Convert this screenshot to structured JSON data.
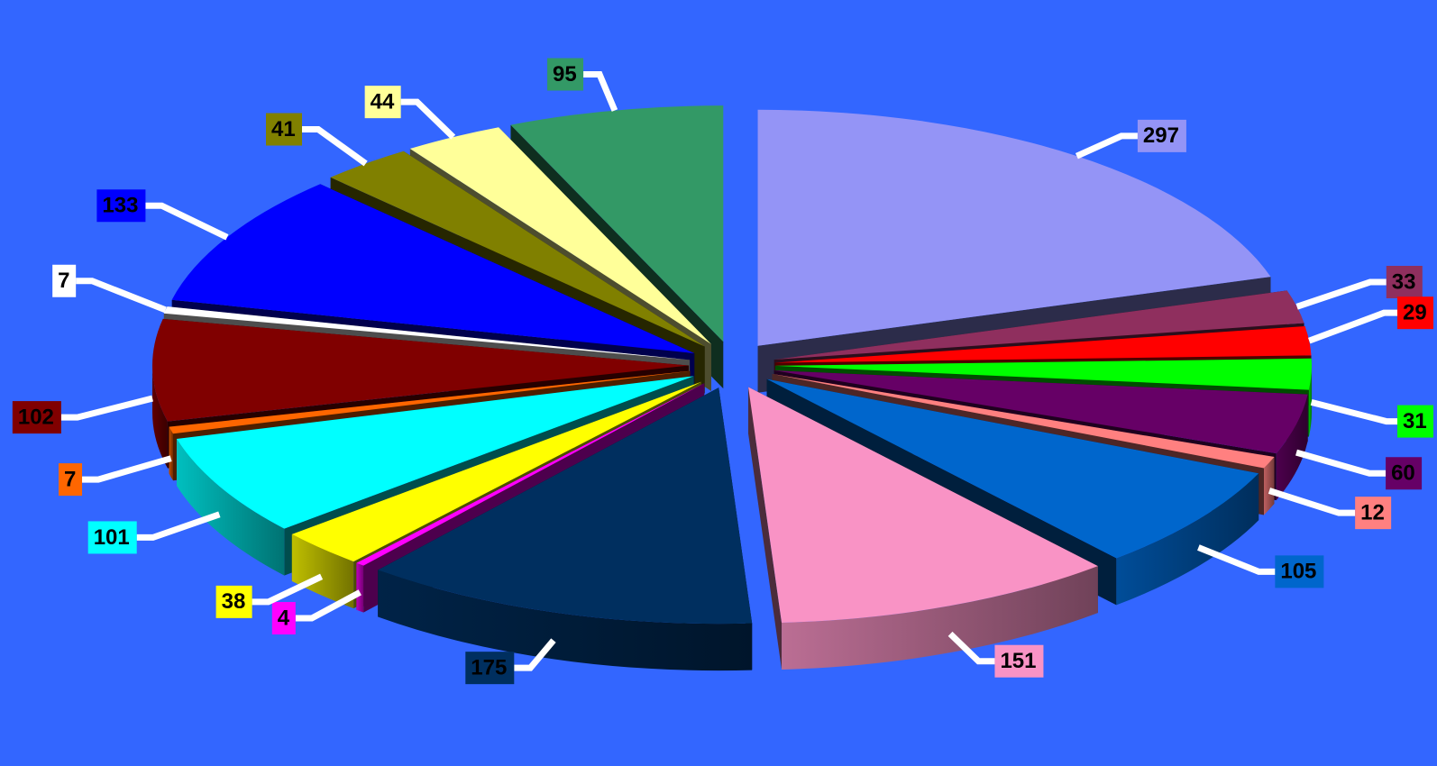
{
  "chart_data": {
    "type": "pie",
    "variant": "3d-exploded",
    "title": "",
    "legend": "none",
    "background_color": "#3366ff",
    "leader_line_color": "#ffffff",
    "slices": [
      {
        "value": 297,
        "label": "297",
        "color": "#9494f6",
        "label_text_color": "#000000"
      },
      {
        "value": 33,
        "label": "33",
        "color": "#8f2f5e",
        "label_text_color": "#000000"
      },
      {
        "value": 29,
        "label": "29",
        "color": "#ff0000",
        "label_text_color": "#000000"
      },
      {
        "value": 31,
        "label": "31",
        "color": "#00ff00",
        "label_text_color": "#000000"
      },
      {
        "value": 60,
        "label": "60",
        "color": "#660066",
        "label_text_color": "#000000"
      },
      {
        "value": 12,
        "label": "12",
        "color": "#ff8080",
        "label_text_color": "#000000"
      },
      {
        "value": 105,
        "label": "105",
        "color": "#0066cc",
        "label_text_color": "#000000"
      },
      {
        "value": 151,
        "label": "151",
        "color": "#f993c5",
        "label_text_color": "#000000"
      },
      {
        "value": 175,
        "label": "175",
        "color": "#002f5f",
        "label_text_color": "#000000"
      },
      {
        "value": 4,
        "label": "4",
        "color": "#ff00ff",
        "label_text_color": "#000000"
      },
      {
        "value": 38,
        "label": "38",
        "color": "#ffff00",
        "label_text_color": "#000000"
      },
      {
        "value": 101,
        "label": "101",
        "color": "#00ffff",
        "label_text_color": "#000000"
      },
      {
        "value": 7,
        "label": "7",
        "color": "#ff6600",
        "label_text_color": "#000000"
      },
      {
        "value": 102,
        "label": "102",
        "color": "#800000",
        "label_text_color": "#000000"
      },
      {
        "value": 7,
        "label": "7",
        "color": "#ffffff",
        "label_text_color": "#000000"
      },
      {
        "value": 133,
        "label": "133",
        "color": "#0000ff",
        "label_text_color": "#000000"
      },
      {
        "value": 41,
        "label": "41",
        "color": "#808000",
        "label_text_color": "#000000"
      },
      {
        "value": 44,
        "label": "44",
        "color": "#ffff99",
        "label_text_color": "#000000"
      },
      {
        "value": 95,
        "label": "95",
        "color": "#339966",
        "label_text_color": "#000000"
      }
    ]
  }
}
